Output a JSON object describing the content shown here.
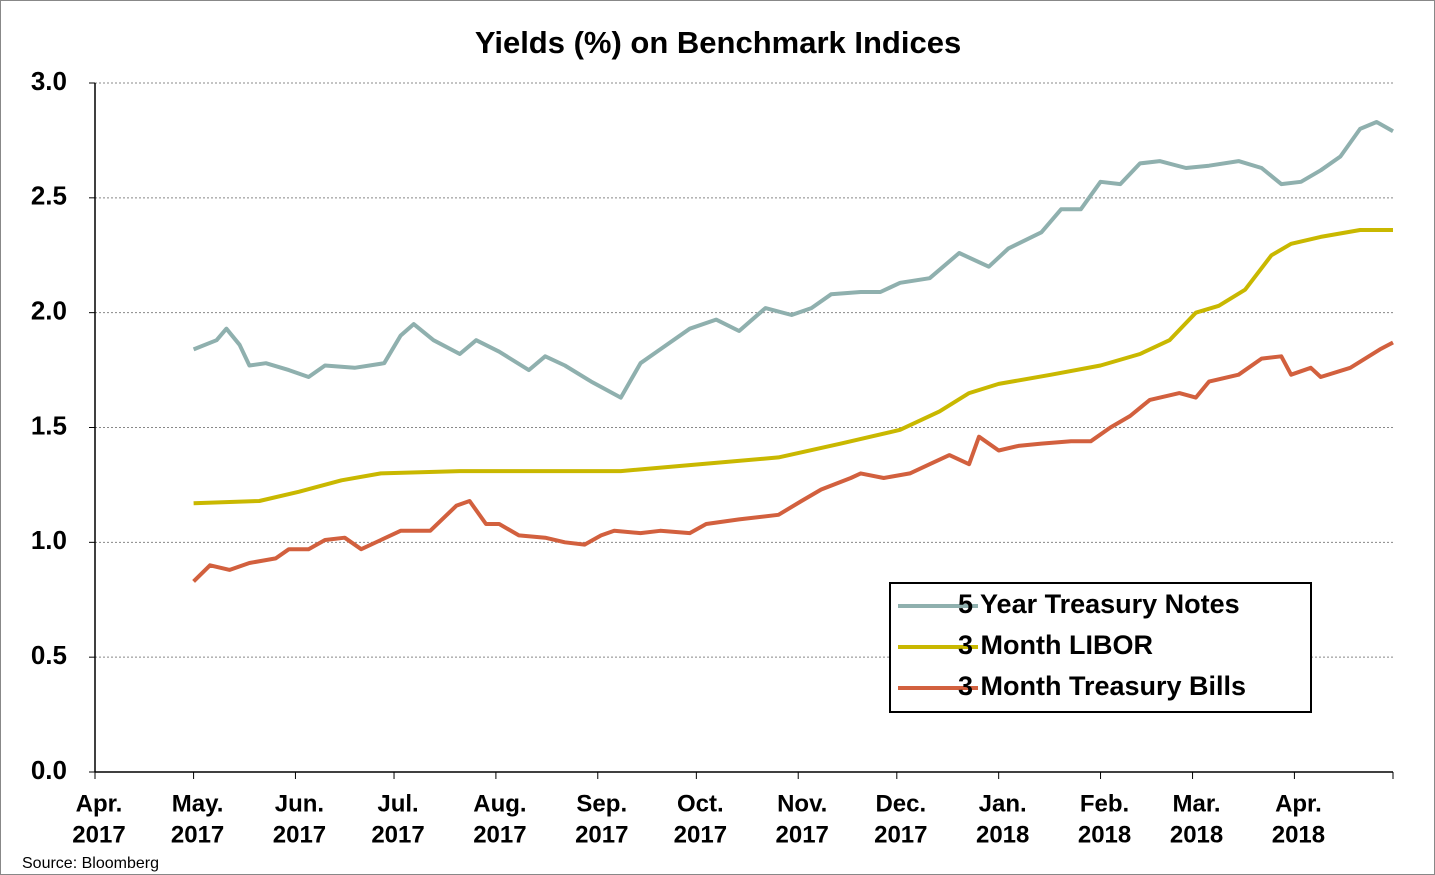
{
  "chart_data": {
    "type": "line",
    "title": "Yields (%) on Benchmark Indices",
    "source": "Source: Bloomberg",
    "xlim": [
      0,
      395
    ],
    "xticks": [
      {
        "value": 0,
        "label": [
          "Apr.",
          "2017"
        ]
      },
      {
        "value": 30,
        "label": [
          "May.",
          "2017"
        ]
      },
      {
        "value": 61,
        "label": [
          "Jun.",
          "2017"
        ]
      },
      {
        "value": 91,
        "label": [
          "Jul.",
          "2017"
        ]
      },
      {
        "value": 122,
        "label": [
          "Aug.",
          "2017"
        ]
      },
      {
        "value": 153,
        "label": [
          "Sep.",
          "2017"
        ]
      },
      {
        "value": 183,
        "label": [
          "Oct.",
          "2017"
        ]
      },
      {
        "value": 214,
        "label": [
          "Nov.",
          "2017"
        ]
      },
      {
        "value": 244,
        "label": [
          "Dec.",
          "2017"
        ]
      },
      {
        "value": 275,
        "label": [
          "Jan.",
          "2018"
        ]
      },
      {
        "value": 306,
        "label": [
          "Feb.",
          "2018"
        ]
      },
      {
        "value": 334,
        "label": [
          "Mar.",
          "2018"
        ]
      },
      {
        "value": 365,
        "label": [
          "Apr.",
          "2018"
        ]
      },
      {
        "value": 395,
        "label": [
          null,
          null
        ]
      }
    ],
    "ylim": [
      0,
      3
    ],
    "yticks": [
      {
        "value": 0,
        "label": "0.0"
      },
      0.5,
      {
        "value": 1,
        "label": "1.0"
      },
      1.5,
      {
        "value": 2,
        "label": "2.0"
      },
      2.5,
      {
        "value": 3,
        "label": "3.0"
      }
    ],
    "grid": true,
    "legend": "lower right",
    "series": [
      {
        "name": "5 Year Treasury Notes",
        "color": "#8fb0ae",
        "x": [
          30,
          37,
          40,
          44,
          47,
          52,
          59,
          65,
          70,
          79,
          88,
          93,
          97,
          103,
          111,
          116,
          123,
          132,
          137,
          143,
          151,
          160,
          166,
          172,
          181,
          189,
          196,
          204,
          212,
          218,
          224,
          233,
          239,
          245,
          254,
          263,
          272,
          278,
          288,
          294,
          300,
          306,
          312,
          318,
          324,
          332,
          339,
          348,
          355,
          361,
          367,
          373,
          379,
          385,
          390,
          395
        ],
        "values": [
          1.84,
          1.88,
          1.93,
          1.86,
          1.77,
          1.78,
          1.75,
          1.72,
          1.77,
          1.76,
          1.78,
          1.9,
          1.95,
          1.88,
          1.82,
          1.88,
          1.83,
          1.75,
          1.81,
          1.77,
          1.7,
          1.63,
          1.78,
          1.84,
          1.93,
          1.97,
          1.92,
          2.02,
          1.99,
          2.02,
          2.08,
          2.09,
          2.09,
          2.13,
          2.15,
          2.26,
          2.2,
          2.28,
          2.35,
          2.45,
          2.45,
          2.57,
          2.56,
          2.65,
          2.66,
          2.63,
          2.64,
          2.66,
          2.63,
          2.56,
          2.57,
          2.62,
          2.68,
          2.8,
          2.83,
          2.79
        ]
      },
      {
        "name": "3 Month LIBOR",
        "color": "#c9b800",
        "x": [
          30,
          50,
          62,
          75,
          87,
          111,
          160,
          184,
          208,
          227,
          245,
          257,
          266,
          275,
          291,
          306,
          318,
          327,
          335,
          342,
          350,
          358,
          364,
          373,
          385,
          395
        ],
        "values": [
          1.17,
          1.18,
          1.22,
          1.27,
          1.3,
          1.31,
          1.31,
          1.34,
          1.37,
          1.43,
          1.49,
          1.57,
          1.65,
          1.69,
          1.73,
          1.77,
          1.82,
          1.88,
          2.0,
          2.03,
          2.1,
          2.25,
          2.3,
          2.33,
          2.36,
          2.36
        ]
      },
      {
        "name": "3 Month Treasury Bills",
        "color": "#d2603e",
        "x": [
          30,
          35,
          41,
          47,
          55,
          59,
          65,
          70,
          76,
          81,
          87,
          93,
          102,
          110,
          114,
          119,
          123,
          129,
          137,
          143,
          149,
          154,
          158,
          166,
          172,
          181,
          186,
          196,
          208,
          215,
          221,
          230,
          233,
          240,
          248,
          254,
          260,
          266,
          269,
          275,
          281,
          288,
          297,
          303,
          309,
          315,
          321,
          330,
          335,
          339,
          348,
          355,
          361,
          364,
          370,
          373,
          382,
          391,
          395
        ],
        "values": [
          0.83,
          0.9,
          0.88,
          0.91,
          0.93,
          0.97,
          0.97,
          1.01,
          1.02,
          0.97,
          1.01,
          1.05,
          1.05,
          1.16,
          1.18,
          1.08,
          1.08,
          1.03,
          1.02,
          1.0,
          0.99,
          1.03,
          1.05,
          1.04,
          1.05,
          1.04,
          1.08,
          1.1,
          1.12,
          1.18,
          1.23,
          1.28,
          1.3,
          1.28,
          1.3,
          1.34,
          1.38,
          1.34,
          1.46,
          1.4,
          1.42,
          1.43,
          1.44,
          1.44,
          1.5,
          1.55,
          1.62,
          1.65,
          1.63,
          1.7,
          1.73,
          1.8,
          1.81,
          1.73,
          1.76,
          1.72,
          1.76,
          1.84,
          1.87
        ]
      }
    ]
  }
}
